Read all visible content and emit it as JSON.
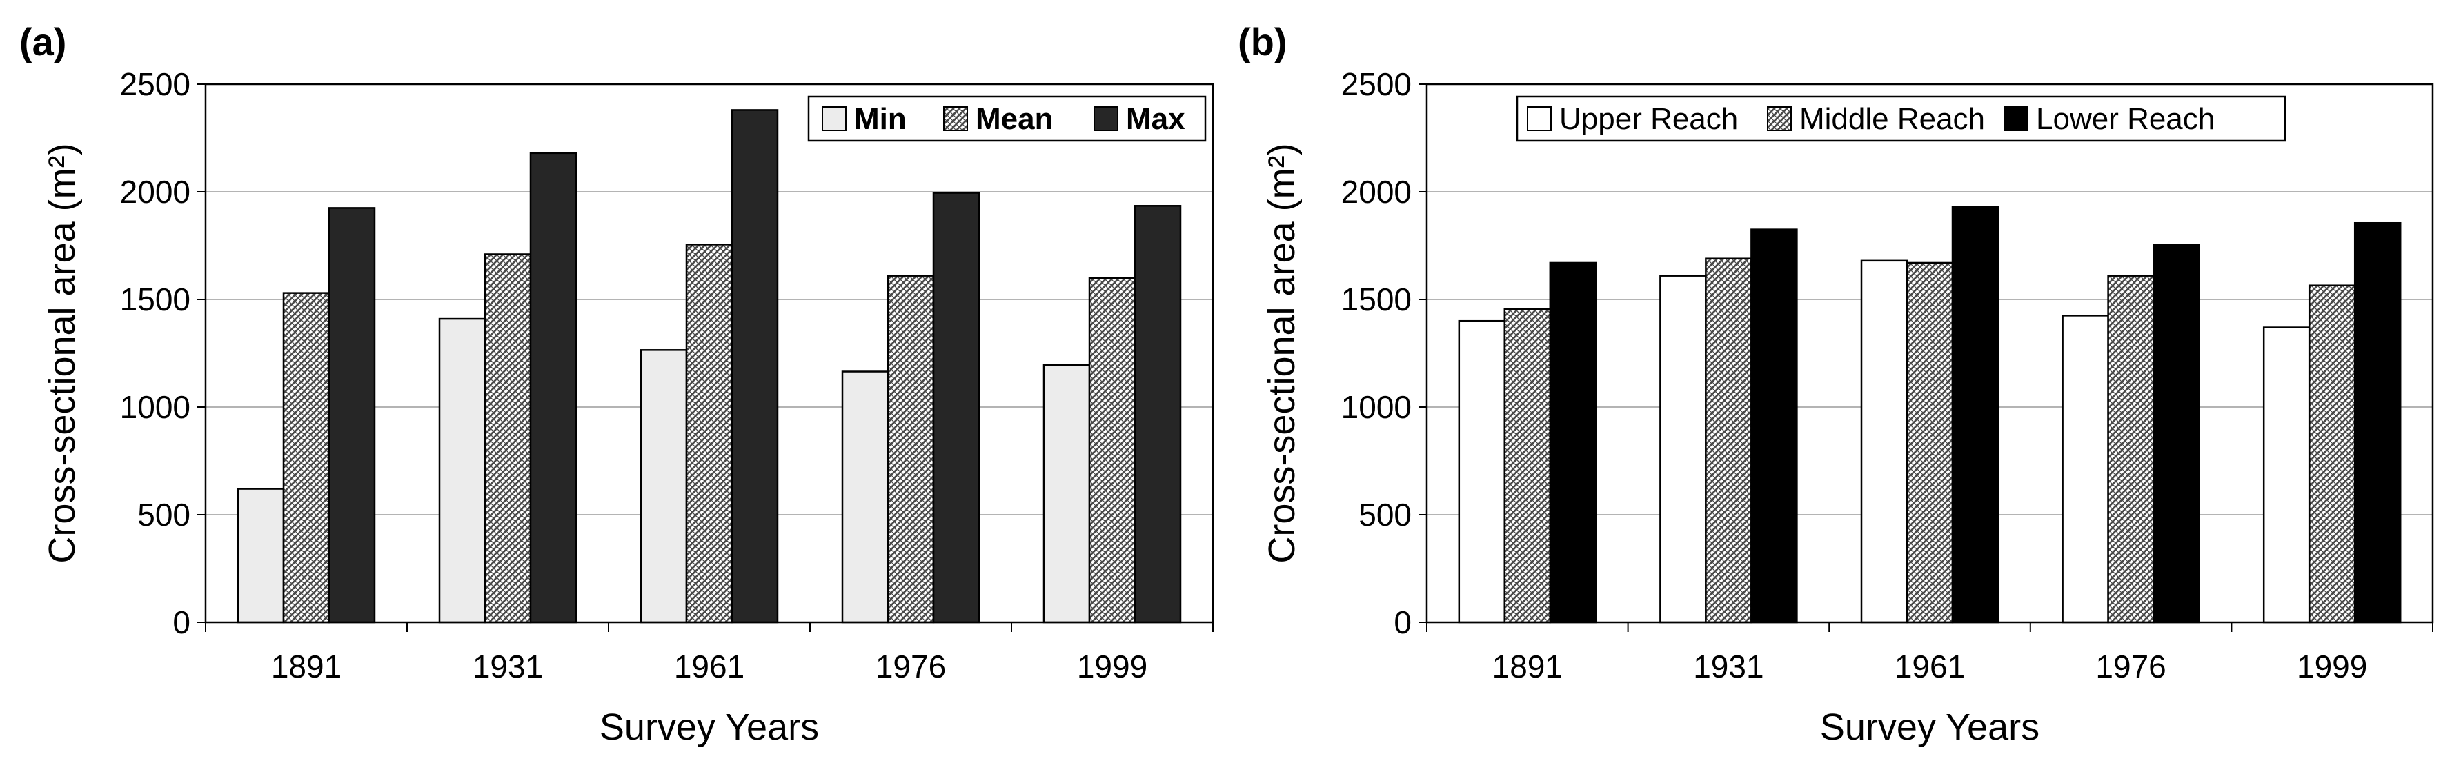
{
  "chart_data": [
    {
      "panel_label": "(a)",
      "type": "bar",
      "categories": [
        "1891",
        "1931",
        "1961",
        "1976",
        "1999"
      ],
      "series": [
        {
          "name": "Min",
          "values": [
            620,
            1410,
            1265,
            1165,
            1195
          ],
          "fill": "light"
        },
        {
          "name": "Mean",
          "values": [
            1530,
            1710,
            1755,
            1610,
            1600
          ],
          "fill": "hatch"
        },
        {
          "name": "Max",
          "values": [
            1925,
            2180,
            2380,
            1995,
            1935
          ],
          "fill": "dark"
        }
      ],
      "title": "",
      "xlabel": "Survey Years",
      "ylabel": "Cross-sectional area (m²)",
      "ylim": [
        0,
        2500
      ],
      "yticks": [
        0,
        500,
        1000,
        1500,
        2000,
        2500
      ],
      "grid": true,
      "legend": "top-right"
    },
    {
      "panel_label": "(b)",
      "type": "bar",
      "categories": [
        "1891",
        "1931",
        "1961",
        "1976",
        "1999"
      ],
      "series": [
        {
          "name": "Upper Reach",
          "values": [
            1400,
            1610,
            1680,
            1425,
            1370
          ],
          "fill": "white"
        },
        {
          "name": "Middle Reach",
          "values": [
            1455,
            1690,
            1670,
            1610,
            1565
          ],
          "fill": "hatch"
        },
        {
          "name": "Lower Reach",
          "values": [
            1670,
            1825,
            1930,
            1755,
            1855
          ],
          "fill": "black"
        }
      ],
      "title": "",
      "xlabel": "Survey Years",
      "ylabel": "Cross-sectional area (m²)",
      "ylim": [
        0,
        2500
      ],
      "yticks": [
        0,
        500,
        1000,
        1500,
        2000,
        2500
      ],
      "grid": true,
      "legend": "top"
    }
  ],
  "colors": {
    "light": "#ececec",
    "dark": "#262626",
    "black": "#000000",
    "white": "#ffffff",
    "hatch_bg": "#ffffff",
    "hatch_ink": "#4a4a4a",
    "grid": "#b4b4b4",
    "axis": "#000000"
  }
}
